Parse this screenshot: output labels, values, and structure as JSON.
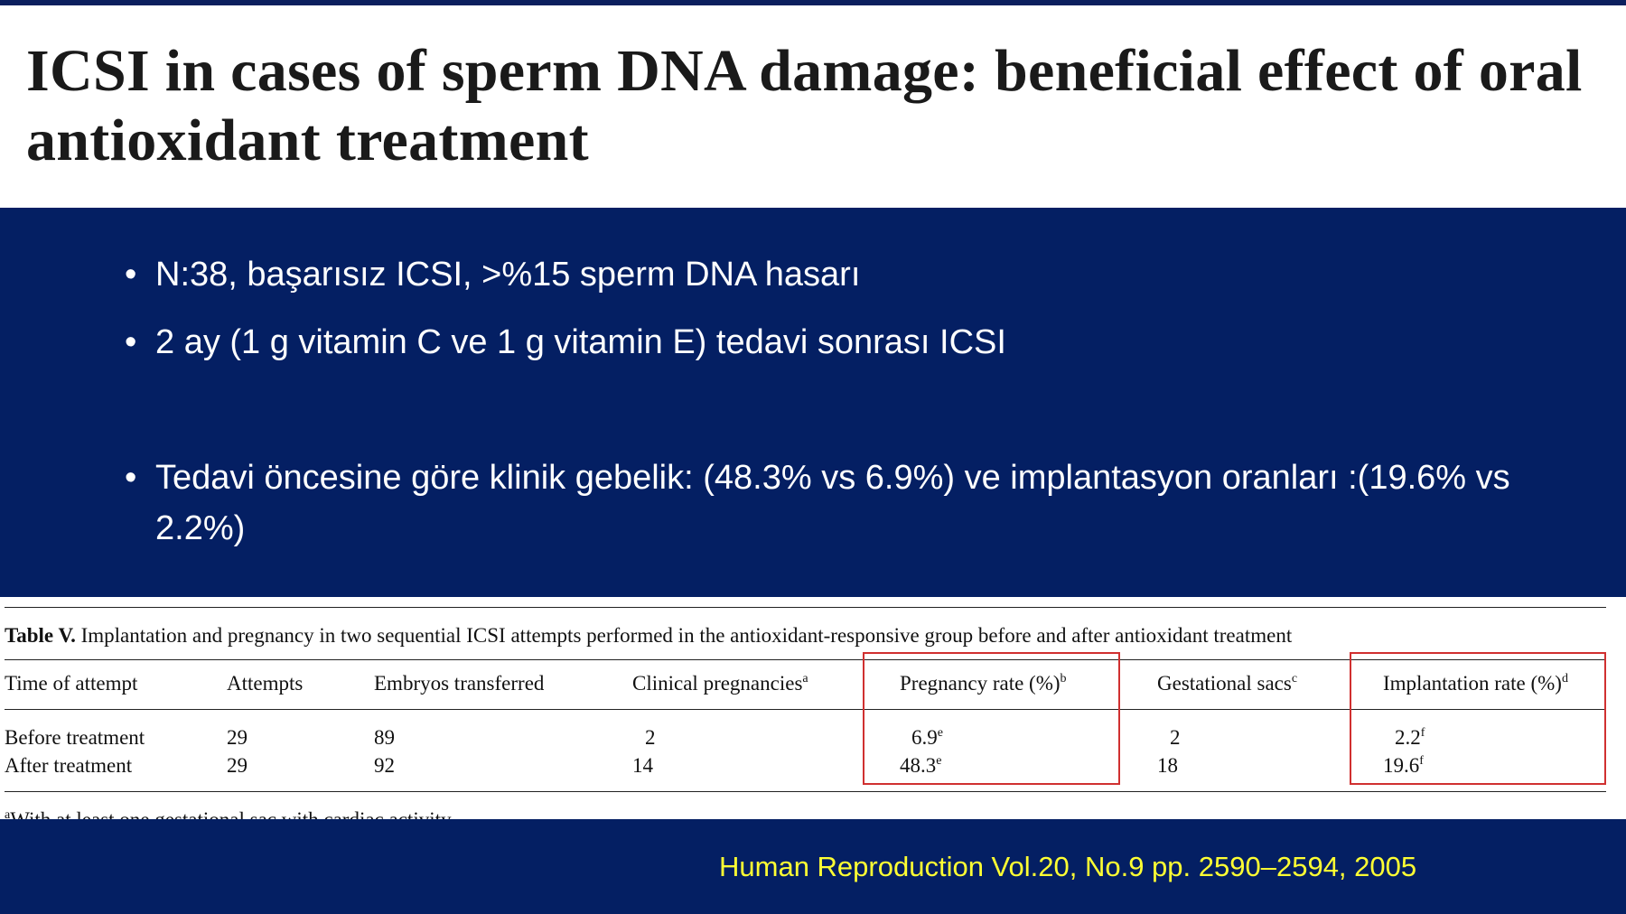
{
  "title": "ICSI in cases of sperm DNA damage: beneficial effect of oral antioxidant treatment",
  "bullets": [
    "N:38, başarısız ICSI, >%15 sperm DNA hasarı",
    "2 ay (1 g vitamin C ve  1 g vitamin E) tedavi sonrası ICSI",
    "Tedavi öncesine göre klinik gebelik: (48.3% vs 6.9%) ve implantasyon oranları :(19.6% vs 2.2%)"
  ],
  "table": {
    "label": "Table V.",
    "caption": "Implantation and pregnancy in two sequential ICSI attempts performed in the antioxidant-responsive group before and after antioxidant treatment",
    "header": [
      {
        "text": "Time of attempt"
      },
      {
        "text": "Attempts"
      },
      {
        "text": "Embryos transferred"
      },
      {
        "text": "Clinical pregnancies",
        "sup": "a"
      },
      {
        "text": "Pregnancy rate (%)",
        "sup": "b"
      },
      {
        "text": "Gestational sacs",
        "sup": "c"
      },
      {
        "text": "Implantation rate (%)",
        "sup": "d"
      }
    ],
    "rows": [
      [
        {
          "text": "Before treatment"
        },
        {
          "text": "29"
        },
        {
          "text": "89"
        },
        {
          "text": "2"
        },
        {
          "text": "6.9",
          "sup": "e"
        },
        {
          "text": "2"
        },
        {
          "text": "2.2",
          "sup": "f"
        }
      ],
      [
        {
          "text": "After treatment"
        },
        {
          "text": "29"
        },
        {
          "text": "92"
        },
        {
          "text": "14"
        },
        {
          "text": "48.3",
          "sup": "e"
        },
        {
          "text": "18"
        },
        {
          "text": "19.6",
          "sup": "f"
        }
      ]
    ],
    "footnote": {
      "sup": "a",
      "text": "With at least one gestational sac with cardiac activity"
    }
  },
  "citation": "Human Reproduction Vol.20, No.9 pp. 2590–2594, 2005"
}
